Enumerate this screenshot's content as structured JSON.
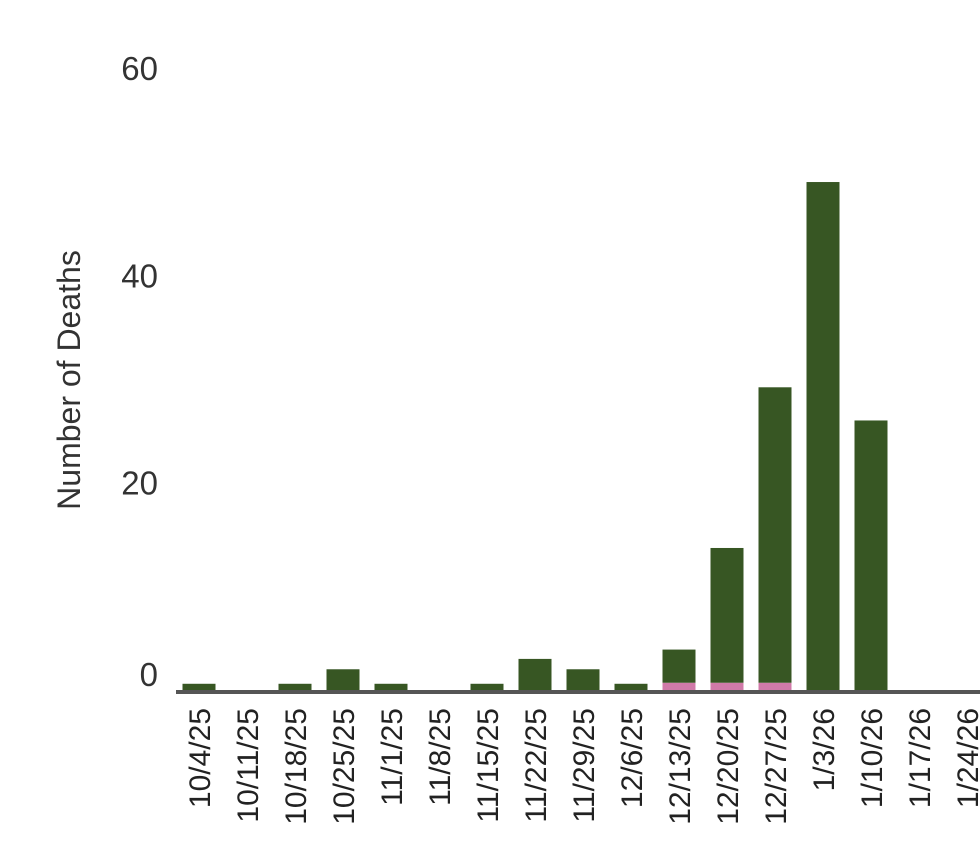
{
  "chart_data": {
    "type": "bar",
    "stacked": true,
    "title": "",
    "xlabel": "",
    "ylabel": "Number of Deaths",
    "ylim": [
      0,
      60
    ],
    "yticks": [
      0,
      20,
      40,
      60
    ],
    "categories": [
      "10/4/25",
      "10/11/25",
      "10/18/25",
      "10/25/25",
      "11/1/25",
      "11/8/25",
      "11/15/25",
      "11/22/25",
      "11/29/25",
      "12/6/25",
      "12/13/25",
      "12/20/25",
      "12/27/25",
      "1/3/26",
      "1/10/26",
      "1/17/26",
      "1/24/26"
    ],
    "series": [
      {
        "color": "#375623",
        "values": [
          0.6,
          0,
          0.6,
          2,
          0.6,
          0,
          0.6,
          3,
          2,
          0.6,
          3.2,
          13,
          28.5,
          49,
          26,
          0,
          0
        ]
      },
      {
        "color": "#d07aa8",
        "values": [
          0,
          0,
          0,
          0,
          0,
          0,
          0,
          0,
          0,
          0,
          0.7,
          0.7,
          0.7,
          0,
          0,
          0,
          0
        ]
      }
    ],
    "grid": false,
    "legend": "none"
  }
}
